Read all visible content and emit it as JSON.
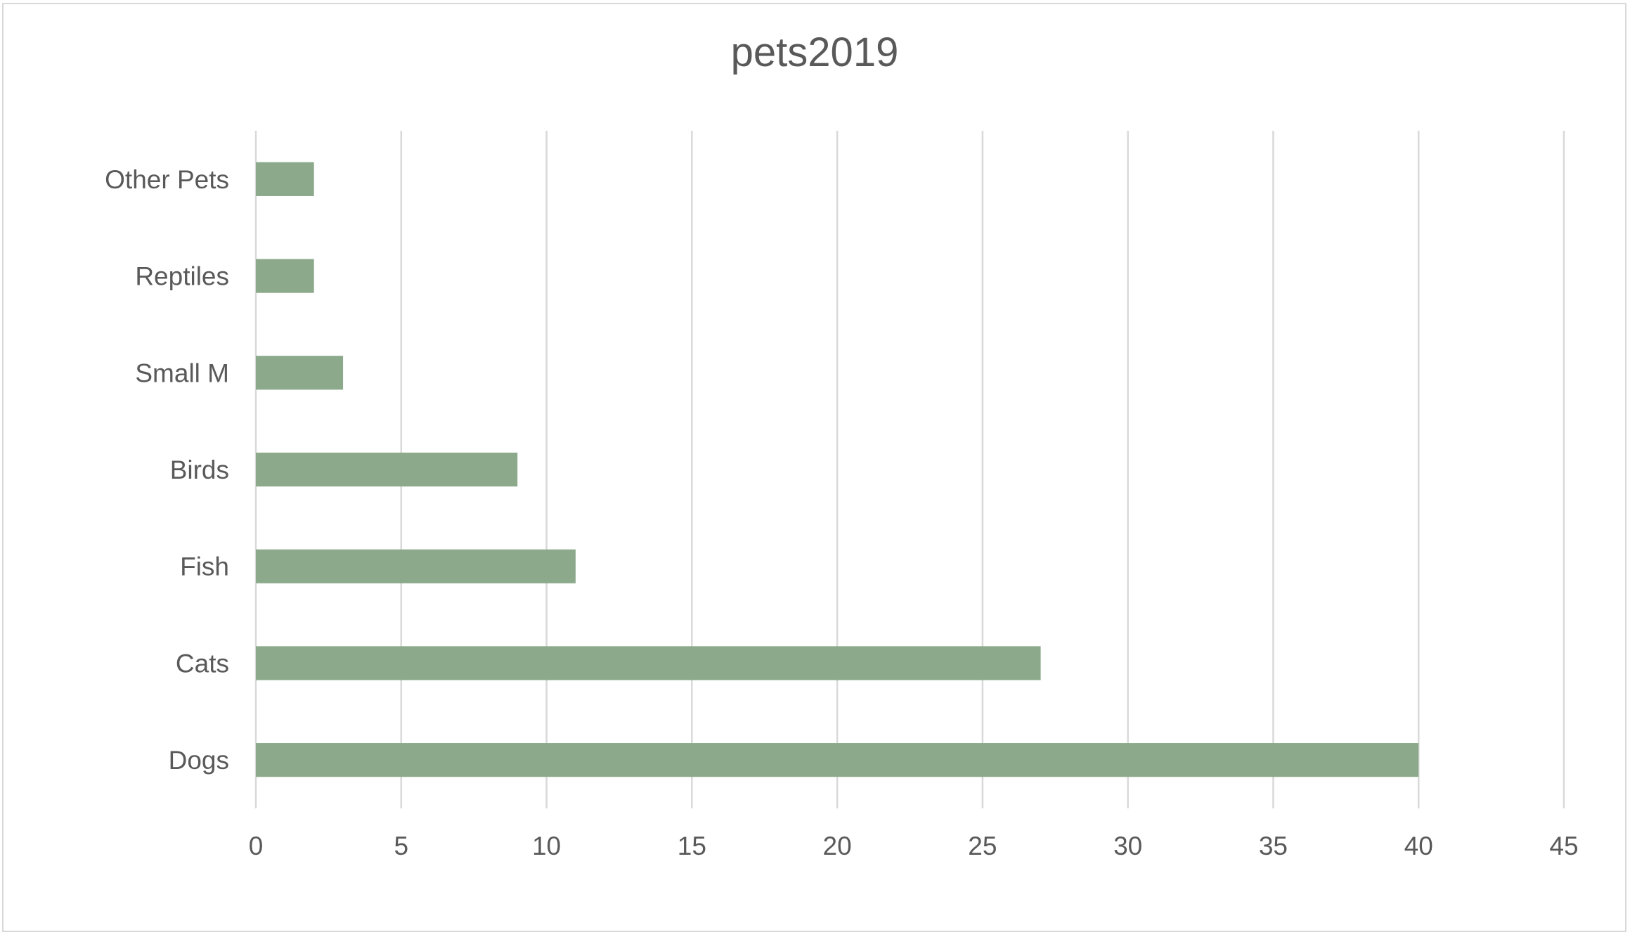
{
  "chart_data": {
    "type": "bar",
    "orientation": "horizontal",
    "title": "pets2019",
    "xlabel": "",
    "ylabel": "",
    "categories": [
      "Dogs",
      "Cats",
      "Fish",
      "Birds",
      "Small M",
      "Reptiles",
      "Other Pets"
    ],
    "values": [
      40,
      27,
      11,
      9,
      3,
      2,
      2
    ],
    "xlim": [
      0,
      45
    ],
    "x_ticks": [
      "0",
      "5",
      "10",
      "15",
      "20",
      "25",
      "30",
      "35",
      "40",
      "45"
    ],
    "grid": "vertical",
    "legend": "none",
    "bar_color": "#8caa8b"
  }
}
